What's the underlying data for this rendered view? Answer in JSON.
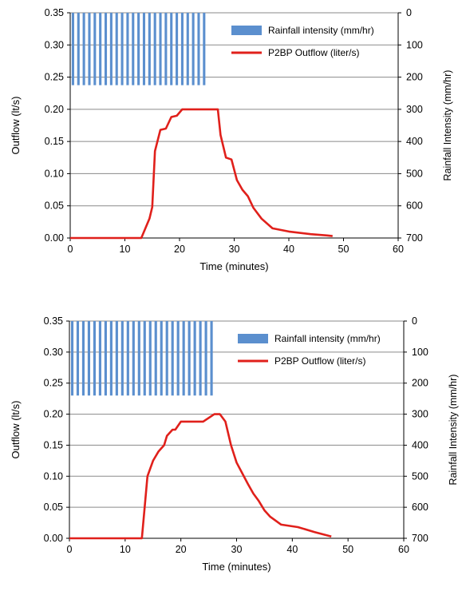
{
  "chart_data": [
    {
      "type": "bar+line",
      "xlabel": "Time (minutes)",
      "ylabel_left": "Outflow (lt/s)",
      "ylabel_right": "Rainfall Intensity (mm/hr)",
      "xlim": [
        0,
        60
      ],
      "x_ticks": [
        "0",
        "10",
        "20",
        "30",
        "40",
        "50",
        "60"
      ],
      "ylim_left": [
        0,
        0.35
      ],
      "y_ticks_left": [
        "0.00",
        "0.05",
        "0.10",
        "0.15",
        "0.20",
        "0.25",
        "0.30",
        "0.35"
      ],
      "ylim_right": [
        0,
        700
      ],
      "y_right_inverted": true,
      "y_ticks_right": [
        "0",
        "100",
        "200",
        "300",
        "400",
        "500",
        "600",
        "700"
      ],
      "grid": "horizontal",
      "legend_position": "top-right",
      "series": [
        {
          "name": "Rainfall intensity (mm/hr)",
          "kind": "bar",
          "axis": "right",
          "color": "#5b8fce",
          "x": [
            0.5,
            1.5,
            2.5,
            3.5,
            4.5,
            5.5,
            6.5,
            7.5,
            8.5,
            9.5,
            10.5,
            11.5,
            12.5,
            13.5,
            14.5,
            15.5,
            16.5,
            17.5,
            18.5,
            19.5,
            20.5,
            21.5,
            22.5,
            23.5,
            24.5
          ],
          "values": [
            225,
            225,
            225,
            225,
            225,
            225,
            225,
            225,
            225,
            225,
            225,
            225,
            225,
            225,
            225,
            225,
            225,
            225,
            225,
            225,
            225,
            225,
            225,
            225,
            225
          ]
        },
        {
          "name": "P2BP Outflow (liter/s)",
          "kind": "line",
          "axis": "left",
          "color": "#e0201b",
          "x": [
            0,
            13,
            14.5,
            15,
            15.5,
            16.5,
            17.5,
            18.5,
            19.5,
            20.5,
            21,
            24,
            27,
            27.5,
            28.5,
            29.5,
            30.5,
            31.5,
            32.5,
            33.5,
            35,
            37,
            40,
            44,
            47,
            48
          ],
          "y": [
            0,
            0,
            0.03,
            0.048,
            0.135,
            0.168,
            0.17,
            0.188,
            0.19,
            0.2,
            0.2,
            0.2,
            0.2,
            0.16,
            0.125,
            0.122,
            0.09,
            0.075,
            0.065,
            0.047,
            0.03,
            0.015,
            0.01,
            0.006,
            0.004,
            0.003
          ]
        }
      ]
    },
    {
      "type": "bar+line",
      "xlabel": "Time (minutes)",
      "ylabel_left": "Outflow (lt/s)",
      "ylabel_right": "Rainfall Intensity (mm/hr)",
      "xlim": [
        0,
        60
      ],
      "x_ticks": [
        "0",
        "10",
        "20",
        "30",
        "40",
        "50",
        "60"
      ],
      "ylim_left": [
        0,
        0.35
      ],
      "y_ticks_left": [
        "0.00",
        "0.05",
        "0.10",
        "0.15",
        "0.20",
        "0.25",
        "0.30",
        "0.35"
      ],
      "ylim_right": [
        0,
        700
      ],
      "y_right_inverted": true,
      "y_ticks_right": [
        "0",
        "100",
        "200",
        "300",
        "400",
        "500",
        "600",
        "700"
      ],
      "grid": "horizontal",
      "legend_position": "top-right",
      "series": [
        {
          "name": "Rainfall intensity (mm/hr)",
          "kind": "bar",
          "axis": "right",
          "color": "#5b8fce",
          "x": [
            0.5,
            1.5,
            2.5,
            3.5,
            4.5,
            5.5,
            6.5,
            7.5,
            8.5,
            9.5,
            10.5,
            11.5,
            12.5,
            13.5,
            14.5,
            15.5,
            16.5,
            17.5,
            18.5,
            19.5,
            20.5,
            21.5,
            22.5,
            23.5,
            24.5,
            25.5
          ],
          "values": [
            240,
            240,
            240,
            240,
            240,
            240,
            240,
            240,
            240,
            240,
            240,
            240,
            240,
            240,
            240,
            240,
            240,
            240,
            240,
            240,
            240,
            240,
            240,
            240,
            240,
            240
          ]
        },
        {
          "name": "P2BP Outflow (liter/s)",
          "kind": "line",
          "axis": "left",
          "color": "#e0201b",
          "x": [
            0,
            13,
            13.5,
            14,
            15,
            16,
            17,
            17.5,
            18.5,
            19,
            20,
            24,
            26,
            26.5,
            27,
            28,
            29,
            30,
            31,
            32,
            33,
            34,
            35,
            36,
            38,
            41,
            44,
            47
          ],
          "y": [
            0,
            0,
            0.05,
            0.1,
            0.125,
            0.14,
            0.15,
            0.165,
            0.175,
            0.175,
            0.188,
            0.188,
            0.2,
            0.2,
            0.2,
            0.188,
            0.15,
            0.122,
            0.105,
            0.088,
            0.072,
            0.06,
            0.045,
            0.035,
            0.022,
            0.018,
            0.01,
            0.003
          ]
        }
      ]
    }
  ]
}
